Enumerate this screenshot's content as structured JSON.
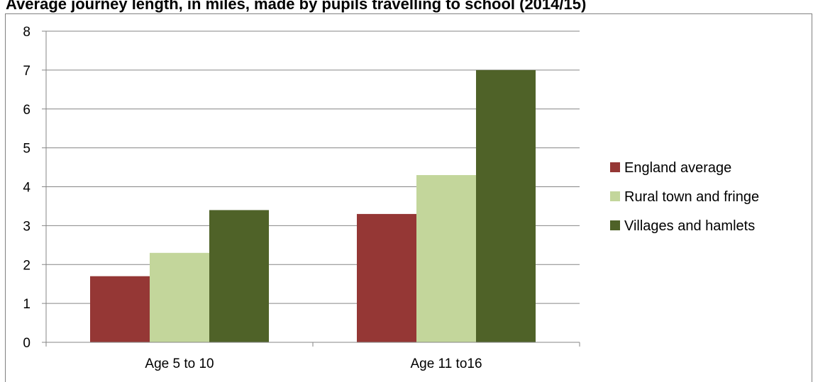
{
  "chart_data": {
    "type": "bar",
    "title": "Average journey length, in miles, made by pupils travelling to school (2014/15)",
    "categories": [
      "Age 5 to 10",
      "Age 11 to16"
    ],
    "series": [
      {
        "name": "England average",
        "values": [
          1.7,
          3.3
        ],
        "color": "#953735"
      },
      {
        "name": "Rural town and fringe",
        "values": [
          2.3,
          4.3
        ],
        "color": "#c3d69b"
      },
      {
        "name": "Villages and hamlets",
        "values": [
          3.4,
          7.0
        ],
        "color": "#4f6228"
      }
    ],
    "ylim": [
      0,
      8
    ],
    "yticks": [
      "0",
      "1",
      "2",
      "3",
      "4",
      "5",
      "6",
      "7",
      "8"
    ],
    "grid": true,
    "legend_position": "right"
  }
}
